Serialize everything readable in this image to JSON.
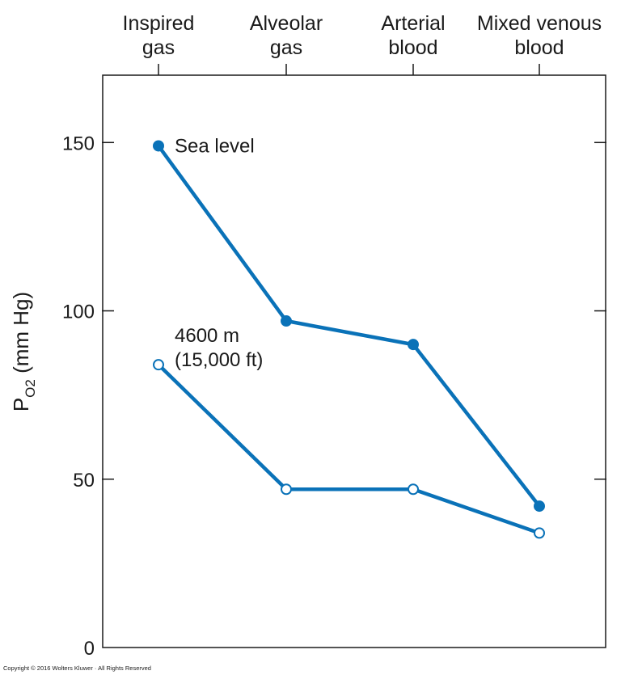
{
  "chart_data": {
    "type": "line",
    "categories": [
      [
        "Inspired",
        "gas"
      ],
      [
        "Alveolar",
        "gas"
      ],
      [
        "Arterial",
        "blood"
      ],
      [
        "Mixed venous",
        "blood"
      ]
    ],
    "ylabel": {
      "main": "P",
      "sub": "O2",
      "unit": " (mm Hg)"
    },
    "ylim": [
      0,
      170
    ],
    "yticks": [
      0,
      50,
      100,
      150
    ],
    "grid": false,
    "series": [
      {
        "name": "Sea level",
        "label_lines": [
          "Sea level"
        ],
        "values": [
          149,
          97,
          90,
          42
        ],
        "marker": "filled",
        "color": "#0a72b8"
      },
      {
        "name": "4600 m (15,000 ft)",
        "label_lines": [
          "4600 m",
          "(15,000 ft)"
        ],
        "values": [
          84,
          47,
          47,
          34
        ],
        "marker": "open",
        "color": "#0a72b8"
      }
    ]
  },
  "footer": {
    "copyright": "Copyright © 2016 Wolters Kluwer · All Rights Reserved"
  }
}
